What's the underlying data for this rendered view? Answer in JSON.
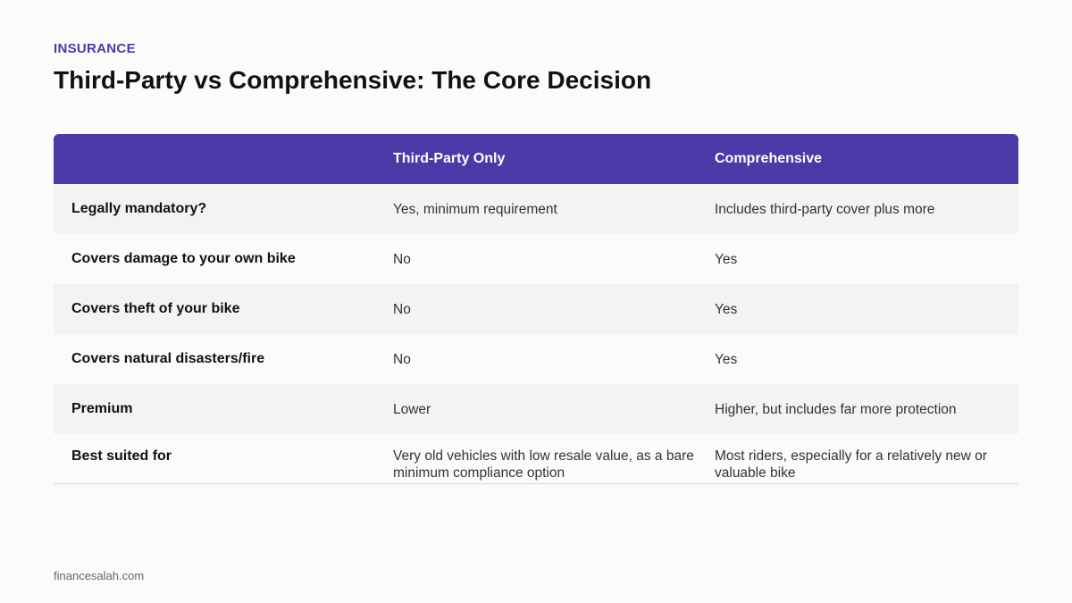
{
  "header": {
    "eyebrow": "INSURANCE",
    "title": "Third-Party vs Comprehensive: The Core Decision"
  },
  "table": {
    "columns": [
      "",
      "Third-Party Only",
      "Comprehensive"
    ],
    "rows": [
      {
        "label": "Legally mandatory?",
        "third_party": "Yes, minimum requirement",
        "comprehensive": "Includes third-party cover plus more"
      },
      {
        "label": "Covers damage to your own bike",
        "third_party": "No",
        "comprehensive": "Yes"
      },
      {
        "label": "Covers theft of your bike",
        "third_party": "No",
        "comprehensive": "Yes"
      },
      {
        "label": "Covers natural disasters/fire",
        "third_party": "No",
        "comprehensive": "Yes"
      },
      {
        "label": "Premium",
        "third_party": "Lower",
        "comprehensive": "Higher, but includes far more protection"
      },
      {
        "label": "Best suited for",
        "third_party": "Very old vehicles with low resale value, as a bare minimum compliance option",
        "comprehensive": "Most riders, especially for a relatively new or valuable bike"
      }
    ]
  },
  "footer": {
    "source": "financesalah.com"
  },
  "colors": {
    "accent": "#4a3aa7",
    "row_alt": "#f3f3f2",
    "background": "#fbfbf9"
  }
}
